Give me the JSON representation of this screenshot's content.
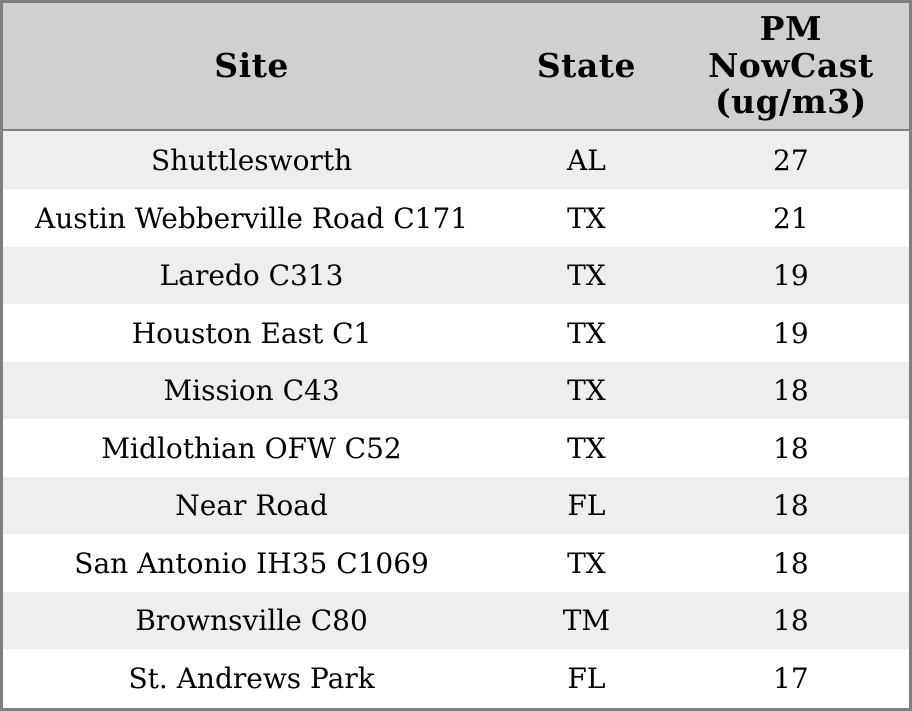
{
  "colors": {
    "border": "#7f7f7f",
    "header_bg": "#d0d0d0",
    "row_alt_bg": "#eeeeee",
    "row_bg": "#ffffff",
    "text": "#000000"
  },
  "table": {
    "headers": [
      "Site",
      "State",
      "PM\nNowCast\n(ug/m3)"
    ],
    "rows": [
      {
        "site": "Shuttlesworth",
        "state": "AL",
        "pm_nowcast": "27"
      },
      {
        "site": "Austin Webberville Road C171",
        "state": "TX",
        "pm_nowcast": "21"
      },
      {
        "site": "Laredo C313",
        "state": "TX",
        "pm_nowcast": "19"
      },
      {
        "site": "Houston East C1",
        "state": "TX",
        "pm_nowcast": "19"
      },
      {
        "site": "Mission C43",
        "state": "TX",
        "pm_nowcast": "18"
      },
      {
        "site": "Midlothian OFW C52",
        "state": "TX",
        "pm_nowcast": "18"
      },
      {
        "site": "Near Road",
        "state": "FL",
        "pm_nowcast": "18"
      },
      {
        "site": "San Antonio IH35 C1069",
        "state": "TX",
        "pm_nowcast": "18"
      },
      {
        "site": "Brownsville C80",
        "state": "TM",
        "pm_nowcast": "18"
      },
      {
        "site": "St. Andrews Park",
        "state": "FL",
        "pm_nowcast": "17"
      }
    ]
  },
  "chart_data": {
    "type": "table",
    "columns": [
      "Site",
      "State",
      "PM NowCast (ug/m3)"
    ],
    "rows": [
      [
        "Shuttlesworth",
        "AL",
        27
      ],
      [
        "Austin Webberville Road C171",
        "TX",
        21
      ],
      [
        "Laredo C313",
        "TX",
        19
      ],
      [
        "Houston East C1",
        "TX",
        19
      ],
      [
        "Mission C43",
        "TX",
        18
      ],
      [
        "Midlothian OFW C52",
        "TX",
        18
      ],
      [
        "Near Road",
        "FL",
        18
      ],
      [
        "San Antonio IH35 C1069",
        "TX",
        18
      ],
      [
        "Brownsville C80",
        "TM",
        18
      ],
      [
        "St. Andrews Park",
        "FL",
        17
      ]
    ],
    "layout_hints": {
      "zebra_striping": true,
      "header_align": "center",
      "cell_align": "center"
    }
  }
}
